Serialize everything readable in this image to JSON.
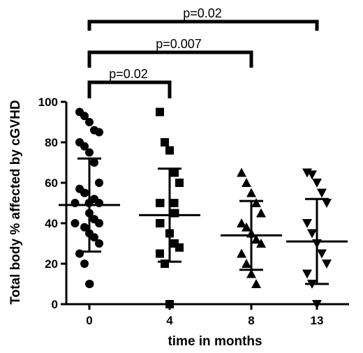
{
  "chart_data": {
    "type": "scatter",
    "xlabel": "time in months",
    "ylabel": "Total body % affected by cGVHD",
    "ylim": [
      0,
      100
    ],
    "yticks": [
      0,
      20,
      40,
      60,
      80,
      100
    ],
    "categories": [
      "0",
      "4",
      "8",
      "13"
    ],
    "series": [
      {
        "category": "0",
        "marker": "circle",
        "values": [
          95,
          93,
          90,
          86,
          85,
          80,
          78,
          75,
          70,
          60,
          57,
          55,
          55,
          52,
          50,
          50,
          50,
          45,
          42,
          40,
          40,
          38,
          35,
          33,
          30,
          25,
          20,
          10,
          10
        ],
        "mean": 49,
        "sd_upper": 72,
        "sd_lower": 26
      },
      {
        "category": "4",
        "marker": "square",
        "values": [
          95,
          80,
          76,
          65,
          60,
          50,
          50,
          50,
          45,
          45,
          40,
          40,
          35,
          30,
          28,
          25,
          20,
          0
        ],
        "mean": 44,
        "sd_upper": 67,
        "sd_lower": 21
      },
      {
        "category": "8",
        "marker": "triangle-up",
        "values": [
          65,
          60,
          55,
          50,
          45,
          40,
          38,
          35,
          32,
          30,
          25,
          20,
          15,
          10
        ],
        "mean": 34,
        "sd_upper": 51,
        "sd_lower": 17
      },
      {
        "category": "13",
        "marker": "triangle-down",
        "values": [
          65,
          64,
          60,
          55,
          50,
          40,
          35,
          30,
          25,
          20,
          15,
          10,
          0
        ],
        "mean": 31,
        "sd_upper": 52,
        "sd_lower": 10
      }
    ],
    "comparisons": [
      {
        "from": "0",
        "to": "4",
        "label": "p=0.02"
      },
      {
        "from": "0",
        "to": "8",
        "label": "p=0.007"
      },
      {
        "from": "0",
        "to": "13",
        "label": "p=0.02"
      }
    ],
    "grid": false,
    "legend": "none"
  }
}
